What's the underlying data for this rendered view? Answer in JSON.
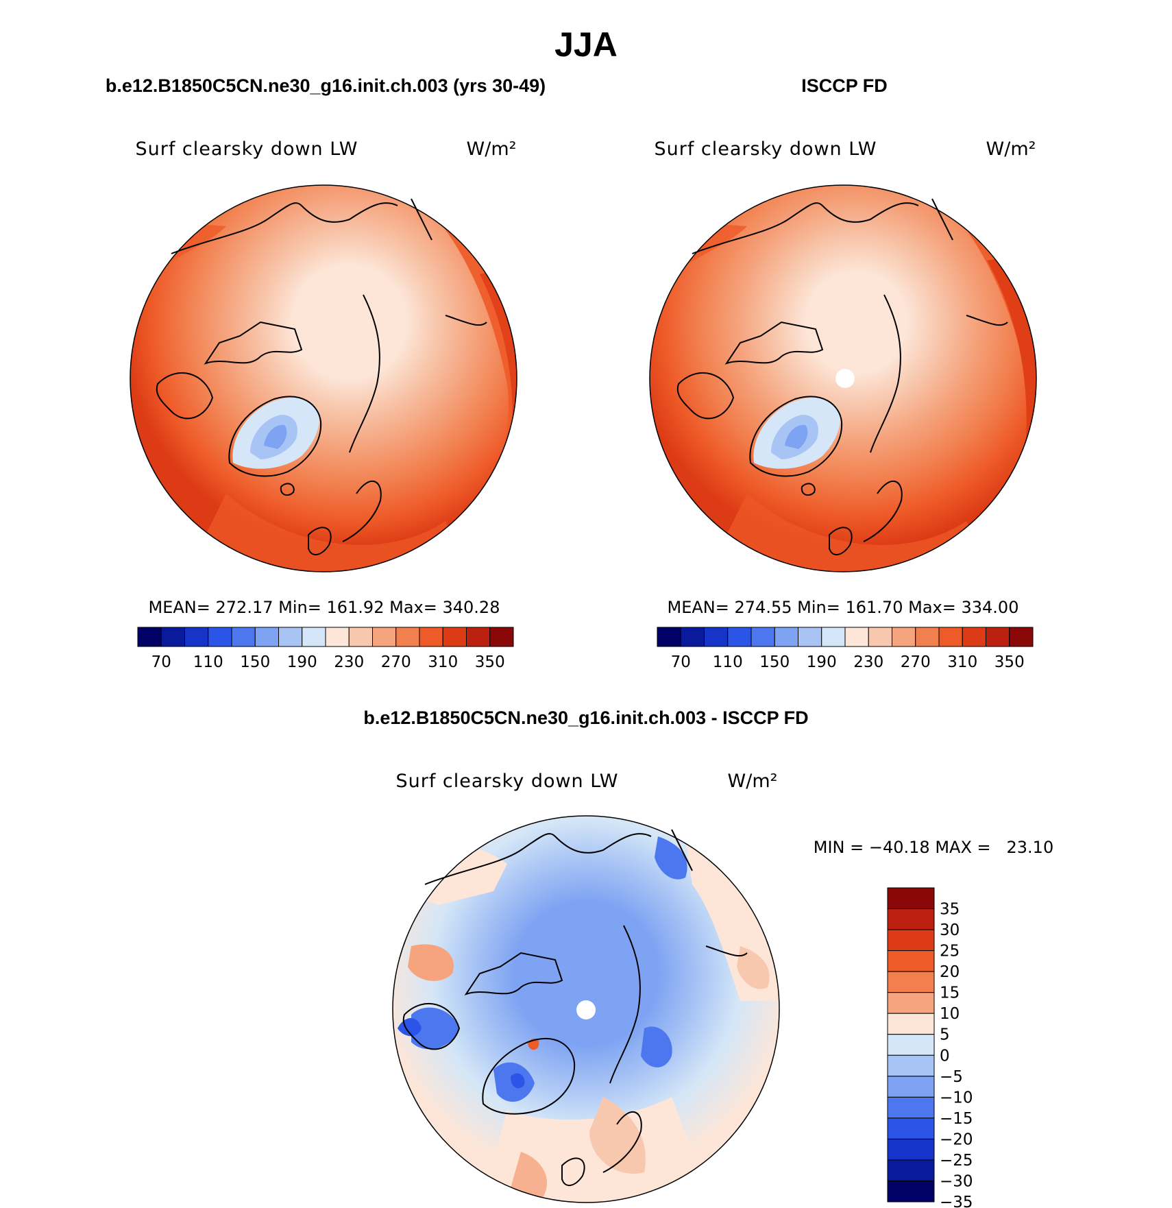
{
  "figure": {
    "season": "JJA",
    "land_outline_color": "#000000",
    "missing_color": "#ffffff"
  },
  "panels": [
    {
      "id": "model",
      "title": "b.e12.B1850C5CN.ne30_g16.init.ch.003 (yrs 30-49)",
      "variable": "Surf clearsky down LW",
      "units": "W/m²",
      "stats": {
        "mean_label": "MEAN=",
        "mean": "272.17",
        "min_label": "Min=",
        "min": "161.92",
        "max_label": "Max=",
        "max": "340.28"
      },
      "pole_missing": false
    },
    {
      "id": "obs",
      "title": "ISCCP FD",
      "variable": "Surf clearsky down LW",
      "units": "W/m²",
      "stats": {
        "mean_label": "MEAN=",
        "mean": "274.55",
        "min_label": "Min=",
        "min": "161.70",
        "max_label": "Max=",
        "max": "334.00"
      },
      "pole_missing": true
    },
    {
      "id": "diff",
      "title": "b.e12.B1850C5CN.ne30_g16.init.ch.003 - ISCCP FD",
      "variable": "Surf clearsky down LW",
      "units": "W/m²",
      "stats": {
        "minmax_text": "MIN = −40.18 MAX =   23.10"
      },
      "pole_missing": true
    }
  ],
  "colorbars": {
    "absolute": {
      "orientation": "horizontal",
      "colors": [
        "#000066",
        "#0a1a9c",
        "#1734c8",
        "#2b55e6",
        "#4d77ef",
        "#7ea3f2",
        "#a8c4f5",
        "#d4e6f7",
        "#fde6d8",
        "#f8c8ae",
        "#f5a47e",
        "#f2804f",
        "#ee5a28",
        "#dd3b15",
        "#bb2010",
        "#8a0808"
      ],
      "tick_labels": [
        "70",
        "110",
        "150",
        "190",
        "230",
        "270",
        "310",
        "350"
      ]
    },
    "difference": {
      "orientation": "vertical",
      "colors": [
        "#8a0808",
        "#bb2010",
        "#dd3b15",
        "#ee5a28",
        "#f2804f",
        "#f5a47e",
        "#fde6d8",
        "#d4e6f7",
        "#a8c4f5",
        "#7ea3f2",
        "#4d77ef",
        "#2b55e6",
        "#1734c8",
        "#0a1a9c",
        "#000066"
      ],
      "tick_labels": [
        "35",
        "30",
        "25",
        "20",
        "15",
        "10",
        "5",
        "0",
        "−5",
        "−10",
        "−15",
        "−20",
        "−25",
        "−30",
        "−35"
      ]
    }
  }
}
